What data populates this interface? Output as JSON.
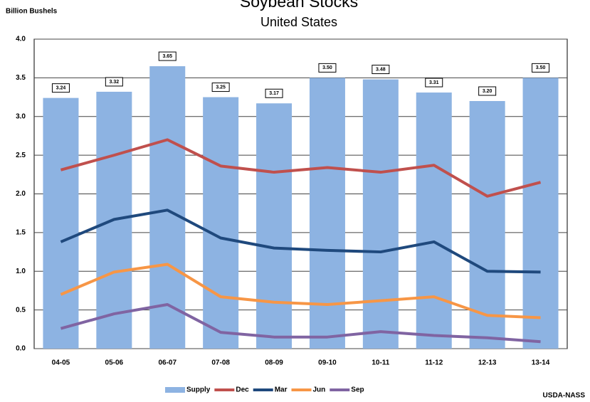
{
  "chart_data": {
    "type": "combo",
    "title": "Soybean Stocks",
    "subtitle": "United States",
    "y_label": "Billion Bushels",
    "source": "USDA-NASS",
    "categories": [
      "04-05",
      "05-06",
      "06-07",
      "07-08",
      "08-09",
      "09-10",
      "10-11",
      "11-12",
      "12-13",
      "13-14"
    ],
    "series": [
      {
        "name": "Supply",
        "type": "bar",
        "color": "#8db3e2",
        "values": [
          3.24,
          3.32,
          3.65,
          3.25,
          3.17,
          3.5,
          3.48,
          3.31,
          3.2,
          3.5
        ],
        "value_labels": [
          "3.24",
          "3.32",
          "3.65",
          "3.25",
          "3.17",
          "3.50",
          "3.48",
          "3.31",
          "3.20",
          "3.50"
        ]
      },
      {
        "name": "Dec",
        "type": "line",
        "color": "#c0504d",
        "values": [
          2.31,
          2.5,
          2.7,
          2.36,
          2.28,
          2.34,
          2.28,
          2.37,
          1.97,
          2.15
        ]
      },
      {
        "name": "Mar",
        "type": "line",
        "color": "#1f497d",
        "values": [
          1.38,
          1.67,
          1.79,
          1.43,
          1.3,
          1.27,
          1.25,
          1.38,
          1.0,
          0.99
        ]
      },
      {
        "name": "Jun",
        "type": "line",
        "color": "#f79646",
        "values": [
          0.7,
          0.99,
          1.09,
          0.67,
          0.6,
          0.57,
          0.62,
          0.67,
          0.43,
          0.4
        ]
      },
      {
        "name": "Sep",
        "type": "line",
        "color": "#8064a2",
        "values": [
          0.26,
          0.45,
          0.57,
          0.21,
          0.15,
          0.15,
          0.22,
          0.17,
          0.14,
          0.09
        ]
      }
    ],
    "ylim": [
      0,
      4
    ],
    "yticks": [
      {
        "value": 0,
        "label": "0.0"
      },
      {
        "value": 0.5,
        "label": "0.5"
      },
      {
        "value": 1,
        "label": "1.0"
      },
      {
        "value": 1.5,
        "label": "1.5"
      },
      {
        "value": 2,
        "label": "2.0"
      },
      {
        "value": 2.5,
        "label": "2.5"
      },
      {
        "value": 3,
        "label": "3.0"
      },
      {
        "value": 3.5,
        "label": "3.5"
      },
      {
        "value": 4,
        "label": "4.0"
      }
    ],
    "grid": true,
    "legend": "bottom"
  }
}
